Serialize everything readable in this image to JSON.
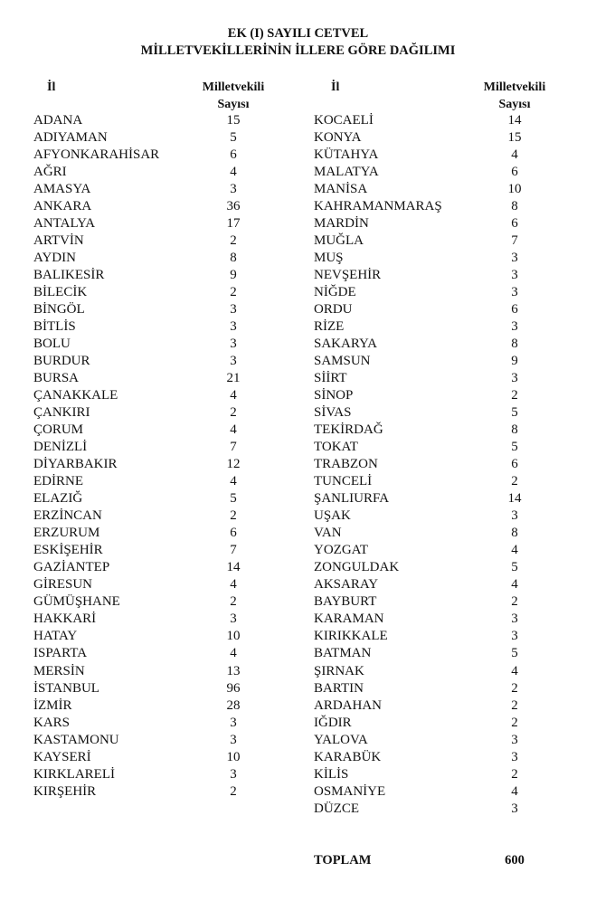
{
  "title": {
    "line1": "EK (I) SAYILI CETVEL",
    "line2": "MİLLETVEKİLLERİNİN İLLERE GÖRE DAĞILIMI"
  },
  "headers": {
    "province": "İl",
    "count_line1": "Milletvekili",
    "count_line2": "Sayısı"
  },
  "left_column": [
    {
      "il": "ADANA",
      "sayi": "15"
    },
    {
      "il": "ADIYAMAN",
      "sayi": "5"
    },
    {
      "il": "AFYONKARAHİSAR",
      "sayi": "6"
    },
    {
      "il": "AĞRI",
      "sayi": "4"
    },
    {
      "il": "AMASYA",
      "sayi": "3"
    },
    {
      "il": "ANKARA",
      "sayi": "36"
    },
    {
      "il": "ANTALYA",
      "sayi": "17"
    },
    {
      "il": "ARTVİN",
      "sayi": "2"
    },
    {
      "il": "AYDIN",
      "sayi": "8"
    },
    {
      "il": "BALIKESİR",
      "sayi": "9"
    },
    {
      "il": "BİLECİK",
      "sayi": "2"
    },
    {
      "il": "BİNGÖL",
      "sayi": "3"
    },
    {
      "il": "BİTLİS",
      "sayi": "3"
    },
    {
      "il": "BOLU",
      "sayi": "3"
    },
    {
      "il": "BURDUR",
      "sayi": "3"
    },
    {
      "il": "BURSA",
      "sayi": "21"
    },
    {
      "il": "ÇANAKKALE",
      "sayi": "4"
    },
    {
      "il": "ÇANKIRI",
      "sayi": "2"
    },
    {
      "il": "ÇORUM",
      "sayi": "4"
    },
    {
      "il": "DENİZLİ",
      "sayi": "7"
    },
    {
      "il": "DİYARBAKIR",
      "sayi": "12"
    },
    {
      "il": "EDİRNE",
      "sayi": "4"
    },
    {
      "il": "ELAZIĞ",
      "sayi": "5"
    },
    {
      "il": "ERZİNCAN",
      "sayi": "2"
    },
    {
      "il": "ERZURUM",
      "sayi": "6"
    },
    {
      "il": "ESKİŞEHİR",
      "sayi": "7"
    },
    {
      "il": "GAZİANTEP",
      "sayi": "14"
    },
    {
      "il": "GİRESUN",
      "sayi": "4"
    },
    {
      "il": "GÜMÜŞHANE",
      "sayi": "2"
    },
    {
      "il": "HAKKARİ",
      "sayi": "3"
    },
    {
      "il": "HATAY",
      "sayi": "10"
    },
    {
      "il": "ISPARTA",
      "sayi": "4"
    },
    {
      "il": "MERSİN",
      "sayi": "13"
    },
    {
      "il": "İSTANBUL",
      "sayi": "96"
    },
    {
      "il": "İZMİR",
      "sayi": "28"
    },
    {
      "il": "KARS",
      "sayi": "3"
    },
    {
      "il": "KASTAMONU",
      "sayi": "3"
    },
    {
      "il": "KAYSERİ",
      "sayi": "10"
    },
    {
      "il": "KIRKLARELİ",
      "sayi": "3"
    },
    {
      "il": "KIRŞEHİR",
      "sayi": "2"
    }
  ],
  "right_column": [
    {
      "il": "KOCAELİ",
      "sayi": "14"
    },
    {
      "il": "KONYA",
      "sayi": "15"
    },
    {
      "il": "KÜTAHYA",
      "sayi": "4"
    },
    {
      "il": "MALATYA",
      "sayi": "6"
    },
    {
      "il": "MANİSA",
      "sayi": "10"
    },
    {
      "il": "KAHRAMANMARAŞ",
      "sayi": "8"
    },
    {
      "il": "MARDİN",
      "sayi": "6"
    },
    {
      "il": "MUĞLA",
      "sayi": "7"
    },
    {
      "il": "MUŞ",
      "sayi": "3"
    },
    {
      "il": "NEVŞEHİR",
      "sayi": "3"
    },
    {
      "il": "NİĞDE",
      "sayi": "3"
    },
    {
      "il": "ORDU",
      "sayi": "6"
    },
    {
      "il": "RİZE",
      "sayi": "3"
    },
    {
      "il": "SAKARYA",
      "sayi": "8"
    },
    {
      "il": "SAMSUN",
      "sayi": "9"
    },
    {
      "il": "SİİRT",
      "sayi": "3"
    },
    {
      "il": "SİNOP",
      "sayi": "2"
    },
    {
      "il": "SİVAS",
      "sayi": "5"
    },
    {
      "il": "TEKİRDAĞ",
      "sayi": "8"
    },
    {
      "il": "TOKAT",
      "sayi": "5"
    },
    {
      "il": "TRABZON",
      "sayi": "6"
    },
    {
      "il": "TUNCELİ",
      "sayi": "2"
    },
    {
      "il": "ŞANLIURFA",
      "sayi": "14"
    },
    {
      "il": "UŞAK",
      "sayi": "3"
    },
    {
      "il": "VAN",
      "sayi": "8"
    },
    {
      "il": "YOZGAT",
      "sayi": "4"
    },
    {
      "il": "ZONGULDAK",
      "sayi": "5"
    },
    {
      "il": "AKSARAY",
      "sayi": "4"
    },
    {
      "il": "BAYBURT",
      "sayi": "2"
    },
    {
      "il": "KARAMAN",
      "sayi": "3"
    },
    {
      "il": "KIRIKKALE",
      "sayi": "3"
    },
    {
      "il": "BATMAN",
      "sayi": "5"
    },
    {
      "il": "ŞIRNAK",
      "sayi": "4"
    },
    {
      "il": "BARTIN",
      "sayi": "2"
    },
    {
      "il": "ARDAHAN",
      "sayi": "2"
    },
    {
      "il": "IĞDIR",
      "sayi": "2"
    },
    {
      "il": "YALOVA",
      "sayi": "3"
    },
    {
      "il": "KARABÜK",
      "sayi": "3"
    },
    {
      "il": "KİLİS",
      "sayi": "2"
    },
    {
      "il": "OSMANİYE",
      "sayi": "4"
    },
    {
      "il": "DÜZCE",
      "sayi": "3"
    }
  ],
  "total": {
    "label": "TOPLAM",
    "value": "600"
  }
}
